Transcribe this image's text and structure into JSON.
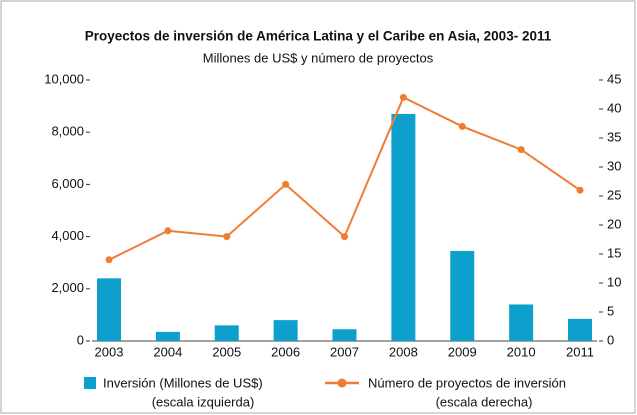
{
  "chart_data": {
    "type": "bar_line",
    "title": "Proyectos de inversión de América Latina y el Caribe en Asia, 2003- 2011",
    "subtitle": "Millones de US$ y número de proyectos",
    "categories": [
      "2003",
      "2004",
      "2005",
      "2006",
      "2007",
      "2008",
      "2009",
      "2010",
      "2011"
    ],
    "series": [
      {
        "name": "Inversión (Millones de US$)",
        "legend_note": "(escala izquierda)",
        "type": "bar",
        "axis": "y",
        "color": "#0ea0cc",
        "values": [
          2400,
          350,
          600,
          800,
          450,
          8700,
          3450,
          1400,
          850
        ]
      },
      {
        "name": "Número de proyectos de inversión",
        "legend_note": "(escala derecha)",
        "type": "line",
        "axis": "y2",
        "color": "#f07c33",
        "values": [
          14,
          19,
          18,
          27,
          18,
          42,
          37,
          33,
          26
        ]
      }
    ],
    "ylim": [
      0,
      10000
    ],
    "yticks": [
      0,
      {
        "value": 2000,
        "label": "2,000"
      },
      {
        "value": 4000,
        "label": "4,000"
      },
      {
        "value": 6000,
        "label": "6,000"
      },
      {
        "value": 8000,
        "label": "8,000"
      },
      {
        "value": 10000,
        "label": "10,000"
      }
    ],
    "y2lim": [
      0,
      45
    ],
    "y2ticks": [
      0,
      5,
      10,
      15,
      20,
      25,
      30,
      35,
      40,
      45
    ]
  }
}
